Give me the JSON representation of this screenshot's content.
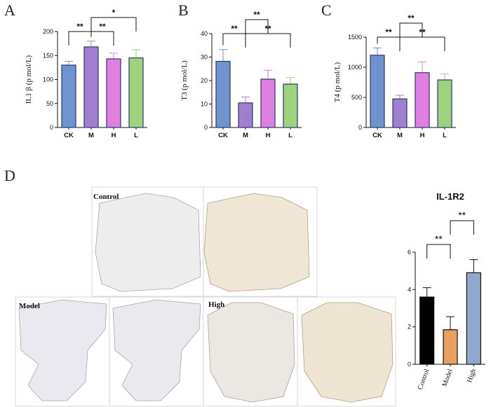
{
  "panels": {
    "A": "A",
    "B": "B",
    "C": "C",
    "D": "D"
  },
  "image_labels": {
    "control": "Control",
    "model": "Model",
    "high": "High"
  },
  "chart_data": [
    {
      "id": "A",
      "type": "bar",
      "categories": [
        "CK",
        "M",
        "H",
        "L"
      ],
      "values": [
        130,
        168,
        143,
        145
      ],
      "errors": [
        8,
        12,
        12,
        17
      ],
      "colors": [
        "#6f93cf",
        "#a07fd0",
        "#e07ee2",
        "#9ed27c"
      ],
      "ylabel": "IL1 β (p mol/L)",
      "ylim": [
        0,
        200
      ],
      "yticks": [
        0,
        50,
        100,
        150,
        200
      ],
      "significance": [
        {
          "from": 0,
          "to": 1,
          "label": "**",
          "level": 1
        },
        {
          "from": 1,
          "to": 2,
          "label": "**",
          "level": 1
        },
        {
          "from": 1,
          "to": 3,
          "label": "*",
          "level": 2
        }
      ]
    },
    {
      "id": "B",
      "type": "bar",
      "categories": [
        "CK",
        "M",
        "H",
        "L"
      ],
      "values": [
        28.2,
        10.5,
        20.6,
        18.5
      ],
      "errors": [
        5.0,
        2.5,
        3.8,
        2.8
      ],
      "colors": [
        "#6f93cf",
        "#a07fd0",
        "#e07ee2",
        "#9ed27c"
      ],
      "ylabel": "T3 (p mol/L)",
      "ylim": [
        0,
        40
      ],
      "yticks": [
        0,
        10,
        20,
        30,
        40
      ],
      "significance": [
        {
          "from": 0,
          "to": 1,
          "label": "**",
          "level": 1
        },
        {
          "from": 1,
          "to": 3,
          "label": "**",
          "level": 1
        },
        {
          "from": 1,
          "to": 2,
          "label": "**",
          "level": 2
        }
      ]
    },
    {
      "id": "C",
      "type": "bar",
      "categories": [
        "CK",
        "M",
        "H",
        "L"
      ],
      "values": [
        1200,
        475,
        910,
        790
      ],
      "errors": [
        120,
        60,
        180,
        100
      ],
      "colors": [
        "#6f93cf",
        "#a07fd0",
        "#e07ee2",
        "#9ed27c"
      ],
      "ylabel": "T4 (p mol/L)",
      "ylim": [
        0,
        1500
      ],
      "yticks": [
        0,
        500,
        1000,
        1500
      ],
      "significance": [
        {
          "from": 0,
          "to": 1,
          "label": "**",
          "level": 1
        },
        {
          "from": 1,
          "to": 3,
          "label": "**",
          "level": 1
        },
        {
          "from": 1,
          "to": 2,
          "label": "**",
          "level": 2
        }
      ]
    },
    {
      "id": "D",
      "type": "bar",
      "title": "IL-1R2",
      "categories": [
        "Control",
        "Model",
        "High"
      ],
      "values": [
        3.6,
        1.85,
        4.9
      ],
      "errors": [
        0.5,
        0.7,
        0.7
      ],
      "colors": [
        "#000000",
        "#e8a060",
        "#8fa8cf"
      ],
      "ylim": [
        0,
        6
      ],
      "yticks": [
        0,
        2,
        4,
        6
      ],
      "significance": [
        {
          "from": 0,
          "to": 1,
          "label": "**",
          "level": 1
        },
        {
          "from": 1,
          "to": 2,
          "label": "**",
          "level": 2
        }
      ]
    }
  ]
}
